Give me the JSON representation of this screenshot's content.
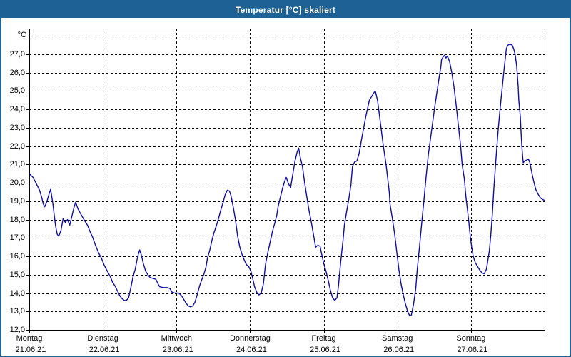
{
  "window": {
    "title": "Temperatur [°C] skaliert"
  },
  "colors": {
    "titlebar_bg": "#1d6195",
    "titlebar_text": "#ffffff",
    "window_border": "#1d6195",
    "plot_bg": "#ffffff",
    "grid": "#000000",
    "axis": "#000000",
    "series_line": "#0d0da8"
  },
  "chart_data": {
    "type": "line",
    "title": "Temperatur [°C] skaliert",
    "legend": "none",
    "grid": "dashed",
    "y_axis": {
      "unit_label": "°C",
      "min": 12.0,
      "max": 28.4,
      "tick_step": 1.0,
      "tick_values": [
        12,
        13,
        14,
        15,
        16,
        17,
        18,
        19,
        20,
        21,
        22,
        23,
        24,
        25,
        26,
        27
      ],
      "tick_labels": [
        "12,0",
        "13,0",
        "14,0",
        "15,0",
        "16,0",
        "17,0",
        "18,0",
        "19,0",
        "20,0",
        "21,0",
        "22,0",
        "23,0",
        "24,0",
        "25,0",
        "26,0",
        "27,0"
      ],
      "top_unlabeled_gridline": 28.0
    },
    "x_axis": {
      "unit": "days",
      "range_days": [
        0,
        7
      ],
      "day_labels": [
        {
          "name": "Montag",
          "date": "21.06.21"
        },
        {
          "name": "Dienstag",
          "date": "22.06.21"
        },
        {
          "name": "Mittwoch",
          "date": "23.06.21"
        },
        {
          "name": "Donnerstag",
          "date": "24.06.21"
        },
        {
          "name": "Freitag",
          "date": "25.06.21"
        },
        {
          "name": "Samstag",
          "date": "26.06.21"
        },
        {
          "name": "Sonntag",
          "date": "27.06.21"
        }
      ]
    },
    "series": [
      {
        "name": "Temperatur",
        "color": "#0d0da8",
        "points": [
          [
            0.0,
            20.5
          ],
          [
            0.05,
            20.3
          ],
          [
            0.09,
            20.0
          ],
          [
            0.14,
            19.6
          ],
          [
            0.17,
            19.2
          ],
          [
            0.19,
            18.85
          ],
          [
            0.21,
            18.7
          ],
          [
            0.24,
            19.0
          ],
          [
            0.27,
            19.4
          ],
          [
            0.29,
            19.65
          ],
          [
            0.32,
            18.9
          ],
          [
            0.34,
            18.2
          ],
          [
            0.36,
            17.6
          ],
          [
            0.38,
            17.2
          ],
          [
            0.4,
            17.1
          ],
          [
            0.43,
            17.4
          ],
          [
            0.46,
            18.05
          ],
          [
            0.49,
            17.85
          ],
          [
            0.52,
            18.0
          ],
          [
            0.55,
            17.7
          ],
          [
            0.58,
            18.2
          ],
          [
            0.61,
            18.7
          ],
          [
            0.63,
            18.95
          ],
          [
            0.66,
            18.6
          ],
          [
            0.7,
            18.3
          ],
          [
            0.75,
            17.95
          ],
          [
            0.79,
            17.7
          ],
          [
            0.83,
            17.3
          ],
          [
            0.86,
            17.05
          ],
          [
            0.9,
            16.6
          ],
          [
            0.94,
            16.2
          ],
          [
            0.98,
            15.9
          ],
          [
            1.02,
            15.5
          ],
          [
            1.06,
            15.2
          ],
          [
            1.1,
            14.9
          ],
          [
            1.13,
            14.6
          ],
          [
            1.17,
            14.35
          ],
          [
            1.2,
            14.1
          ],
          [
            1.23,
            13.85
          ],
          [
            1.26,
            13.7
          ],
          [
            1.29,
            13.6
          ],
          [
            1.32,
            13.6
          ],
          [
            1.35,
            13.75
          ],
          [
            1.38,
            14.3
          ],
          [
            1.41,
            14.9
          ],
          [
            1.44,
            15.3
          ],
          [
            1.46,
            15.75
          ],
          [
            1.48,
            16.1
          ],
          [
            1.5,
            16.35
          ],
          [
            1.52,
            16.1
          ],
          [
            1.55,
            15.6
          ],
          [
            1.58,
            15.2
          ],
          [
            1.61,
            15.0
          ],
          [
            1.64,
            14.85
          ],
          [
            1.68,
            14.8
          ],
          [
            1.72,
            14.75
          ],
          [
            1.75,
            14.5
          ],
          [
            1.77,
            14.35
          ],
          [
            1.82,
            14.3
          ],
          [
            1.87,
            14.3
          ],
          [
            1.91,
            14.25
          ],
          [
            1.94,
            14.05
          ],
          [
            1.98,
            14.0
          ],
          [
            2.03,
            14.0
          ],
          [
            2.07,
            13.85
          ],
          [
            2.1,
            13.65
          ],
          [
            2.13,
            13.45
          ],
          [
            2.16,
            13.3
          ],
          [
            2.19,
            13.25
          ],
          [
            2.22,
            13.3
          ],
          [
            2.25,
            13.5
          ],
          [
            2.28,
            13.9
          ],
          [
            2.31,
            14.35
          ],
          [
            2.34,
            14.7
          ],
          [
            2.37,
            15.0
          ],
          [
            2.4,
            15.4
          ],
          [
            2.42,
            15.9
          ],
          [
            2.45,
            16.3
          ],
          [
            2.48,
            16.85
          ],
          [
            2.51,
            17.3
          ],
          [
            2.54,
            17.65
          ],
          [
            2.57,
            18.05
          ],
          [
            2.6,
            18.5
          ],
          [
            2.63,
            18.9
          ],
          [
            2.66,
            19.35
          ],
          [
            2.69,
            19.6
          ],
          [
            2.72,
            19.55
          ],
          [
            2.74,
            19.3
          ],
          [
            2.77,
            18.7
          ],
          [
            2.8,
            18.0
          ],
          [
            2.83,
            17.1
          ],
          [
            2.86,
            16.5
          ],
          [
            2.89,
            16.1
          ],
          [
            2.92,
            15.8
          ],
          [
            2.95,
            15.55
          ],
          [
            2.98,
            15.45
          ],
          [
            3.01,
            15.2
          ],
          [
            3.04,
            14.7
          ],
          [
            3.06,
            14.35
          ],
          [
            3.09,
            14.05
          ],
          [
            3.12,
            13.9
          ],
          [
            3.15,
            14.0
          ],
          [
            3.18,
            14.5
          ],
          [
            3.21,
            15.6
          ],
          [
            3.24,
            16.2
          ],
          [
            3.27,
            16.75
          ],
          [
            3.3,
            17.3
          ],
          [
            3.33,
            17.75
          ],
          [
            3.36,
            18.2
          ],
          [
            3.38,
            18.7
          ],
          [
            3.41,
            19.2
          ],
          [
            3.44,
            19.7
          ],
          [
            3.47,
            20.1
          ],
          [
            3.49,
            20.3
          ],
          [
            3.52,
            19.95
          ],
          [
            3.55,
            19.75
          ],
          [
            3.58,
            20.5
          ],
          [
            3.61,
            21.2
          ],
          [
            3.64,
            21.7
          ],
          [
            3.66,
            21.9
          ],
          [
            3.68,
            21.4
          ],
          [
            3.71,
            20.9
          ],
          [
            3.74,
            20.0
          ],
          [
            3.77,
            19.25
          ],
          [
            3.8,
            18.5
          ],
          [
            3.83,
            17.9
          ],
          [
            3.86,
            17.2
          ],
          [
            3.89,
            16.5
          ],
          [
            3.92,
            16.6
          ],
          [
            3.95,
            16.55
          ],
          [
            3.97,
            16.15
          ],
          [
            4.0,
            15.6
          ],
          [
            4.03,
            15.2
          ],
          [
            4.06,
            14.7
          ],
          [
            4.09,
            14.15
          ],
          [
            4.12,
            13.75
          ],
          [
            4.15,
            13.6
          ],
          [
            4.18,
            13.75
          ],
          [
            4.2,
            14.4
          ],
          [
            4.23,
            15.7
          ],
          [
            4.26,
            16.8
          ],
          [
            4.28,
            17.7
          ],
          [
            4.31,
            18.4
          ],
          [
            4.34,
            19.1
          ],
          [
            4.37,
            19.9
          ],
          [
            4.39,
            20.9
          ],
          [
            4.42,
            21.15
          ],
          [
            4.45,
            21.2
          ],
          [
            4.48,
            21.6
          ],
          [
            4.51,
            22.3
          ],
          [
            4.54,
            22.95
          ],
          [
            4.57,
            23.6
          ],
          [
            4.6,
            24.15
          ],
          [
            4.62,
            24.5
          ],
          [
            4.65,
            24.7
          ],
          [
            4.68,
            24.9
          ],
          [
            4.7,
            25.0
          ],
          [
            4.73,
            24.5
          ],
          [
            4.75,
            23.9
          ],
          [
            4.77,
            23.25
          ],
          [
            4.79,
            22.6
          ],
          [
            4.81,
            22.0
          ],
          [
            4.83,
            21.45
          ],
          [
            4.85,
            20.9
          ],
          [
            4.87,
            20.2
          ],
          [
            4.89,
            19.5
          ],
          [
            4.9,
            18.85
          ],
          [
            4.93,
            18.1
          ],
          [
            4.96,
            17.3
          ],
          [
            4.99,
            16.3
          ],
          [
            5.02,
            15.3
          ],
          [
            5.05,
            14.5
          ],
          [
            5.08,
            13.9
          ],
          [
            5.11,
            13.4
          ],
          [
            5.14,
            13.0
          ],
          [
            5.17,
            12.75
          ],
          [
            5.19,
            12.8
          ],
          [
            5.22,
            13.4
          ],
          [
            5.25,
            14.25
          ],
          [
            5.27,
            15.3
          ],
          [
            5.3,
            16.5
          ],
          [
            5.33,
            17.8
          ],
          [
            5.36,
            19.0
          ],
          [
            5.39,
            20.3
          ],
          [
            5.42,
            21.5
          ],
          [
            5.45,
            22.4
          ],
          [
            5.48,
            23.3
          ],
          [
            5.51,
            24.2
          ],
          [
            5.54,
            25.0
          ],
          [
            5.57,
            25.8
          ],
          [
            5.59,
            26.3
          ],
          [
            5.6,
            26.7
          ],
          [
            5.62,
            26.85
          ],
          [
            5.64,
            26.95
          ],
          [
            5.66,
            26.8
          ],
          [
            5.68,
            26.9
          ],
          [
            5.71,
            26.6
          ],
          [
            5.74,
            26.0
          ],
          [
            5.77,
            25.2
          ],
          [
            5.8,
            24.2
          ],
          [
            5.83,
            23.1
          ],
          [
            5.86,
            22.0
          ],
          [
            5.88,
            21.0
          ],
          [
            5.91,
            20.2
          ],
          [
            5.93,
            19.3
          ],
          [
            5.95,
            18.6
          ],
          [
            5.97,
            17.9
          ],
          [
            5.99,
            17.1
          ],
          [
            6.01,
            16.5
          ],
          [
            6.03,
            16.0
          ],
          [
            6.06,
            15.65
          ],
          [
            6.09,
            15.45
          ],
          [
            6.12,
            15.25
          ],
          [
            6.15,
            15.1
          ],
          [
            6.18,
            15.05
          ],
          [
            6.21,
            15.3
          ],
          [
            6.23,
            15.8
          ],
          [
            6.25,
            16.3
          ],
          [
            6.27,
            17.2
          ],
          [
            6.29,
            18.3
          ],
          [
            6.31,
            19.6
          ],
          [
            6.33,
            20.8
          ],
          [
            6.35,
            21.9
          ],
          [
            6.37,
            22.9
          ],
          [
            6.39,
            23.8
          ],
          [
            6.41,
            24.6
          ],
          [
            6.43,
            25.4
          ],
          [
            6.45,
            26.2
          ],
          [
            6.47,
            26.9
          ],
          [
            6.48,
            27.3
          ],
          [
            6.5,
            27.5
          ],
          [
            6.53,
            27.55
          ],
          [
            6.56,
            27.5
          ],
          [
            6.58,
            27.3
          ],
          [
            6.6,
            27.0
          ],
          [
            6.62,
            26.4
          ],
          [
            6.63,
            25.9
          ],
          [
            6.64,
            25.3
          ],
          [
            6.65,
            24.5
          ],
          [
            6.67,
            23.6
          ],
          [
            6.68,
            22.8
          ],
          [
            6.69,
            22.1
          ],
          [
            6.7,
            21.5
          ],
          [
            6.71,
            21.1
          ],
          [
            6.73,
            21.2
          ],
          [
            6.76,
            21.25
          ],
          [
            6.78,
            21.3
          ],
          [
            6.8,
            21.1
          ],
          [
            6.82,
            20.7
          ],
          [
            6.84,
            20.3
          ],
          [
            6.86,
            19.95
          ],
          [
            6.88,
            19.65
          ],
          [
            6.91,
            19.4
          ],
          [
            6.94,
            19.2
          ],
          [
            6.97,
            19.1
          ],
          [
            7.0,
            19.05
          ]
        ]
      }
    ]
  }
}
